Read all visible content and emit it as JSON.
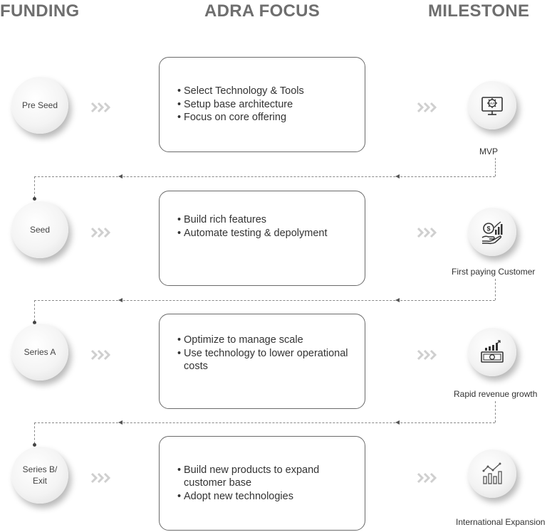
{
  "headers": {
    "funding": "FUNDING",
    "focus": "ADRA FOCUS",
    "milestone": "MILESTONE"
  },
  "stages": [
    {
      "funding": "Pre Seed",
      "focus": [
        "Select Technology & Tools",
        "Setup base architecture",
        "Focus on core offering"
      ],
      "milestone": "MVP",
      "icon": "mvp-monitor-gear-icon"
    },
    {
      "funding": "Seed",
      "focus": [
        "Build rich features",
        "Automate testing & depolyment"
      ],
      "milestone": "First paying Customer",
      "icon": "hand-coin-growth-icon"
    },
    {
      "funding": "Series A",
      "focus": [
        "Optimize to manage scale",
        "Use technology to lower operational costs"
      ],
      "milestone": "Rapid revenue growth",
      "icon": "banknote-chart-icon"
    },
    {
      "funding_lines": [
        "Series B/",
        "Exit"
      ],
      "focus": [
        "Build new products to expand customer base",
        "Adopt new technologies"
      ],
      "milestone": "International Expansion",
      "icon": "line-bar-chart-icon"
    }
  ],
  "colors": {
    "header": "#6e6e6e",
    "box_border": "#6a6a6a",
    "chevron": "#cfcfcf",
    "connector": "#888888"
  }
}
